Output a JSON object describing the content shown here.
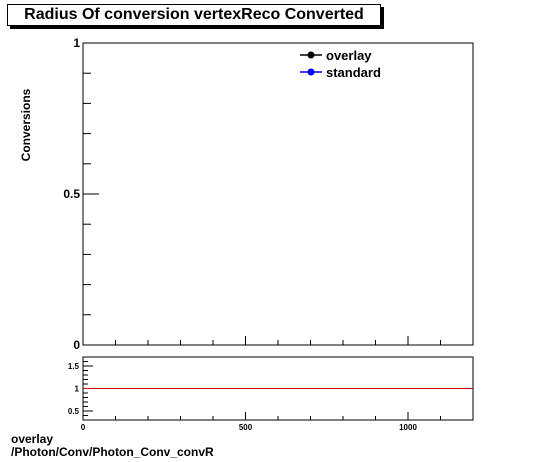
{
  "chart_data": [
    {
      "type": "line",
      "title": "Radius Of conversion vertexReco Converted",
      "ylabel": "Conversions",
      "xlabel": "",
      "xlim": [
        0,
        1200
      ],
      "ylim": [
        0,
        1
      ],
      "y_tick_labels": [
        "1",
        "0.5",
        "0"
      ],
      "legend_position": "top-right",
      "series": [
        {
          "name": "overlay",
          "color": "#000000",
          "marker": "circle",
          "values": []
        },
        {
          "name": "standard",
          "color": "#0000ff",
          "marker": "circle",
          "values": []
        }
      ]
    },
    {
      "type": "line",
      "title": "",
      "xlim": [
        0,
        1200
      ],
      "ylim": [
        0.3,
        1.7
      ],
      "x_tick_labels": [
        "0",
        "500",
        "1000"
      ],
      "y_tick_labels": [
        "1.5",
        "1",
        "0.5"
      ],
      "reference_line": {
        "y": 1,
        "color": "#cc0000"
      },
      "series": []
    }
  ],
  "footer": {
    "line1": "overlay",
    "line2": "/Photon/Conv/Photon_Conv_convR"
  }
}
